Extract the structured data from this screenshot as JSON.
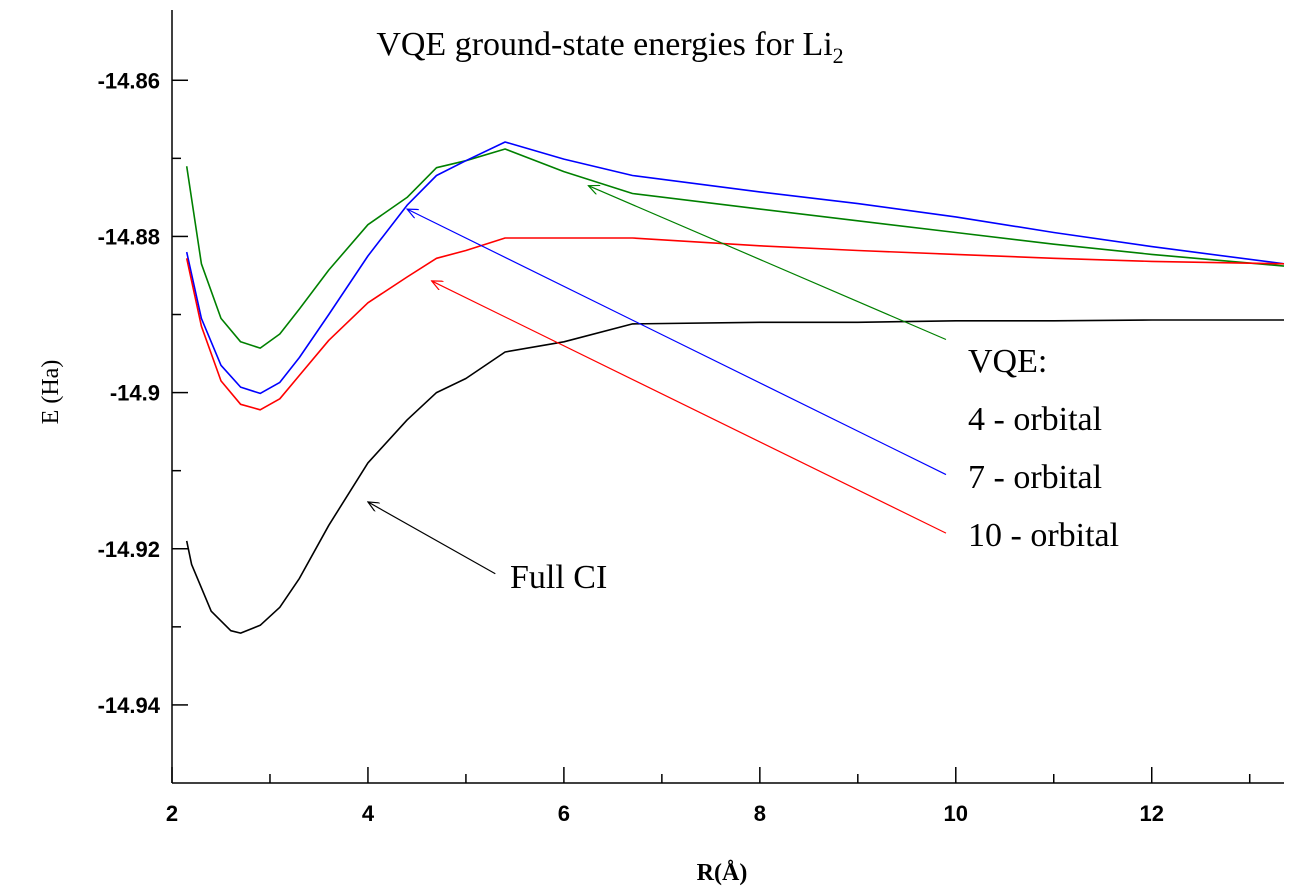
{
  "chart_data": {
    "type": "line",
    "title": "VQE ground-state energies for Li",
    "title_subscript": "2",
    "xlabel": "R(Å)",
    "ylabel": "E (Ha)",
    "xlim": [
      2,
      13.35
    ],
    "ylim": [
      -14.95,
      -14.851
    ],
    "x_ticks": [
      2,
      4,
      6,
      8,
      10,
      12
    ],
    "x_tick_labels": [
      "2",
      "4",
      "6",
      "8",
      "10",
      "12"
    ],
    "y_ticks": [
      -14.86,
      -14.88,
      -14.9,
      -14.92,
      -14.94
    ],
    "y_tick_labels": [
      "-14.86",
      "-14.88",
      "-14.9",
      "-14.92",
      "-14.94"
    ],
    "grid": false,
    "legend_title": "VQE:",
    "series": [
      {
        "name": "4 - orbital",
        "color": "#008000",
        "points": [
          [
            2.15,
            -14.871
          ],
          [
            2.3,
            -14.8835
          ],
          [
            2.5,
            -14.8905
          ],
          [
            2.7,
            -14.8935
          ],
          [
            2.9,
            -14.8943
          ],
          [
            3.1,
            -14.8925
          ],
          [
            3.3,
            -14.8893
          ],
          [
            3.6,
            -14.8843
          ],
          [
            4.0,
            -14.8785
          ],
          [
            4.4,
            -14.875
          ],
          [
            4.7,
            -14.8712
          ],
          [
            5.0,
            -14.8703
          ],
          [
            5.4,
            -14.8688
          ],
          [
            6.0,
            -14.8717
          ],
          [
            6.7,
            -14.8745
          ],
          [
            8.0,
            -14.8765
          ],
          [
            9.0,
            -14.878
          ],
          [
            10.0,
            -14.8795
          ],
          [
            11.0,
            -14.881
          ],
          [
            12.0,
            -14.8823
          ],
          [
            13.35,
            -14.8838
          ]
        ]
      },
      {
        "name": "7 - orbital",
        "color": "#0000ff",
        "points": [
          [
            2.15,
            -14.882
          ],
          [
            2.3,
            -14.8905
          ],
          [
            2.5,
            -14.8965
          ],
          [
            2.7,
            -14.8993
          ],
          [
            2.9,
            -14.9001
          ],
          [
            3.1,
            -14.8987
          ],
          [
            3.3,
            -14.8955
          ],
          [
            3.6,
            -14.89
          ],
          [
            4.0,
            -14.8825
          ],
          [
            4.4,
            -14.876
          ],
          [
            4.7,
            -14.8722
          ],
          [
            5.0,
            -14.8703
          ],
          [
            5.4,
            -14.8679
          ],
          [
            6.0,
            -14.8701
          ],
          [
            6.7,
            -14.8722
          ],
          [
            8.0,
            -14.8743
          ],
          [
            9.0,
            -14.8758
          ],
          [
            10.0,
            -14.8775
          ],
          [
            11.0,
            -14.8795
          ],
          [
            12.0,
            -14.8813
          ],
          [
            13.35,
            -14.8835
          ]
        ]
      },
      {
        "name": "10 - orbital",
        "color": "#ff0000",
        "points": [
          [
            2.15,
            -14.8828
          ],
          [
            2.3,
            -14.8915
          ],
          [
            2.5,
            -14.8985
          ],
          [
            2.7,
            -14.9015
          ],
          [
            2.9,
            -14.9022
          ],
          [
            3.1,
            -14.9008
          ],
          [
            3.3,
            -14.8978
          ],
          [
            3.6,
            -14.8933
          ],
          [
            4.0,
            -14.8885
          ],
          [
            4.4,
            -14.8852
          ],
          [
            4.7,
            -14.8828
          ],
          [
            5.0,
            -14.8818
          ],
          [
            5.4,
            -14.8802
          ],
          [
            6.0,
            -14.8802
          ],
          [
            6.7,
            -14.8802
          ],
          [
            8.0,
            -14.8812
          ],
          [
            9.0,
            -14.8818
          ],
          [
            10.0,
            -14.8823
          ],
          [
            11.0,
            -14.8828
          ],
          [
            12.0,
            -14.8832
          ],
          [
            13.35,
            -14.8835
          ]
        ]
      },
      {
        "name": "Full CI",
        "color": "#000000",
        "points": [
          [
            2.15,
            -14.919
          ],
          [
            2.2,
            -14.922
          ],
          [
            2.4,
            -14.928
          ],
          [
            2.6,
            -14.9305
          ],
          [
            2.7,
            -14.9308
          ],
          [
            2.9,
            -14.9298
          ],
          [
            3.1,
            -14.9275
          ],
          [
            3.3,
            -14.9238
          ],
          [
            3.6,
            -14.917
          ],
          [
            4.0,
            -14.909
          ],
          [
            4.4,
            -14.9035
          ],
          [
            4.7,
            -14.9
          ],
          [
            5.0,
            -14.8982
          ],
          [
            5.4,
            -14.8948
          ],
          [
            6.0,
            -14.8935
          ],
          [
            6.7,
            -14.8912
          ],
          [
            8.0,
            -14.891
          ],
          [
            9.0,
            -14.891
          ],
          [
            10.0,
            -14.8908
          ],
          [
            11.0,
            -14.8908
          ],
          [
            12.0,
            -14.8907
          ],
          [
            13.35,
            -14.8907
          ]
        ]
      }
    ],
    "annotations": [
      {
        "text": "4 - orbital",
        "series": "4 - orbital",
        "color": "#008000",
        "from": [
          9.9,
          -14.8932
        ],
        "to": [
          6.25,
          -14.8735
        ]
      },
      {
        "text": "7 - orbital",
        "series": "7 - orbital",
        "color": "#0000ff",
        "from": [
          9.9,
          -14.9105
        ],
        "to": [
          4.4,
          -14.8765
        ]
      },
      {
        "text": "10 - orbital",
        "series": "10 - orbital",
        "color": "#ff0000",
        "from": [
          9.9,
          -14.918
        ],
        "to": [
          4.65,
          -14.8857
        ]
      },
      {
        "text": "Full CI",
        "series": "Full CI",
        "color": "#000000",
        "from": [
          5.3,
          -14.9232
        ],
        "to": [
          4.0,
          -14.914
        ]
      }
    ]
  }
}
